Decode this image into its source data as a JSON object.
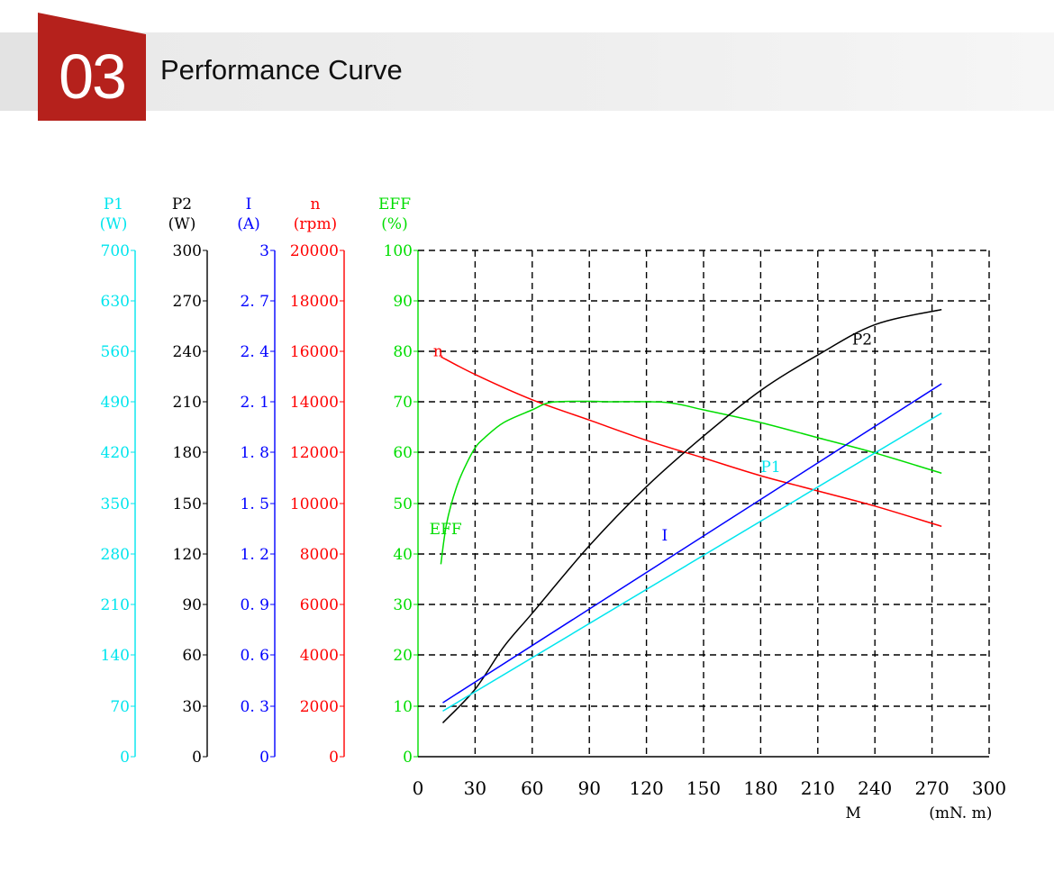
{
  "header": {
    "section_number": "03",
    "title": "Performance Curve",
    "accent_color": "#b5211c"
  },
  "chart_data": {
    "type": "line",
    "title": "",
    "grid": true,
    "x_axis": {
      "label": "M",
      "unit": "(mN. m)",
      "range": [
        0,
        300
      ],
      "ticks": [
        0,
        30,
        60,
        90,
        120,
        150,
        180,
        210,
        240,
        270,
        300
      ]
    },
    "y_axes": [
      {
        "key": "P1",
        "name": "P1",
        "unit": "(W)",
        "color": "#00e5ee",
        "range": [
          0,
          700
        ],
        "ticks": [
          "0",
          "70",
          "140",
          "210",
          "280",
          "350",
          "420",
          "490",
          "560",
          "630",
          "700"
        ]
      },
      {
        "key": "P2",
        "name": "P2",
        "unit": "(W)",
        "color": "#000000",
        "range": [
          0,
          300
        ],
        "ticks": [
          "0",
          "30",
          "60",
          "90",
          "120",
          "150",
          "180",
          "210",
          "240",
          "270",
          "300"
        ]
      },
      {
        "key": "I",
        "name": "I",
        "unit": "(A)",
        "color": "#0000ff",
        "range": [
          0,
          3
        ],
        "ticks": [
          "0",
          "0. 3",
          "0. 6",
          "0. 9",
          "1. 2",
          "1. 5",
          "1. 8",
          "2. 1",
          "2. 4",
          "2. 7",
          "3"
        ]
      },
      {
        "key": "n",
        "name": "n",
        "unit": "(rpm)",
        "color": "#ff0000",
        "range": [
          0,
          20000
        ],
        "ticks": [
          "0",
          "2000",
          "4000",
          "6000",
          "8000",
          "10000",
          "12000",
          "14000",
          "16000",
          "18000",
          "20000"
        ]
      },
      {
        "key": "EFF",
        "name": "EFF",
        "unit": "(%)",
        "color": "#00dd00",
        "range": [
          0,
          100
        ],
        "ticks": [
          "0",
          "10",
          "20",
          "30",
          "40",
          "50",
          "60",
          "70",
          "80",
          "90",
          "100"
        ]
      }
    ],
    "series": [
      {
        "name": "n",
        "axis": "n",
        "color": "#ff0000",
        "x": [
          12,
          30,
          60,
          90,
          120,
          150,
          180,
          210,
          240,
          275
        ],
        "y": [
          15800,
          15100,
          14100,
          13300,
          12500,
          11800,
          11100,
          10500,
          9900,
          9100
        ]
      },
      {
        "name": "EFF",
        "axis": "EFF",
        "color": "#00dd00",
        "x": [
          12,
          15,
          20,
          25,
          30,
          35,
          45,
          60,
          70,
          90,
          100,
          130,
          150,
          180,
          210,
          240,
          275
        ],
        "y": [
          38,
          46,
          53,
          57.5,
          61,
          63,
          66,
          68.5,
          70,
          70.2,
          70.1,
          70,
          68.5,
          66,
          63,
          60,
          56
        ]
      },
      {
        "name": "P2",
        "axis": "P2",
        "color": "#000000",
        "x": [
          13,
          30,
          45,
          60,
          90,
          120,
          150,
          180,
          210,
          240,
          275
        ],
        "y": [
          20,
          40,
          65,
          85,
          125,
          160,
          190,
          217,
          238,
          256,
          265
        ]
      },
      {
        "name": "I",
        "axis": "I",
        "color": "#0000ff",
        "x": [
          13,
          275
        ],
        "y": [
          0.32,
          2.21
        ]
      },
      {
        "name": "P1",
        "axis": "P1",
        "color": "#00e5ee",
        "x": [
          13,
          275
        ],
        "y": [
          63,
          475
        ]
      }
    ]
  }
}
